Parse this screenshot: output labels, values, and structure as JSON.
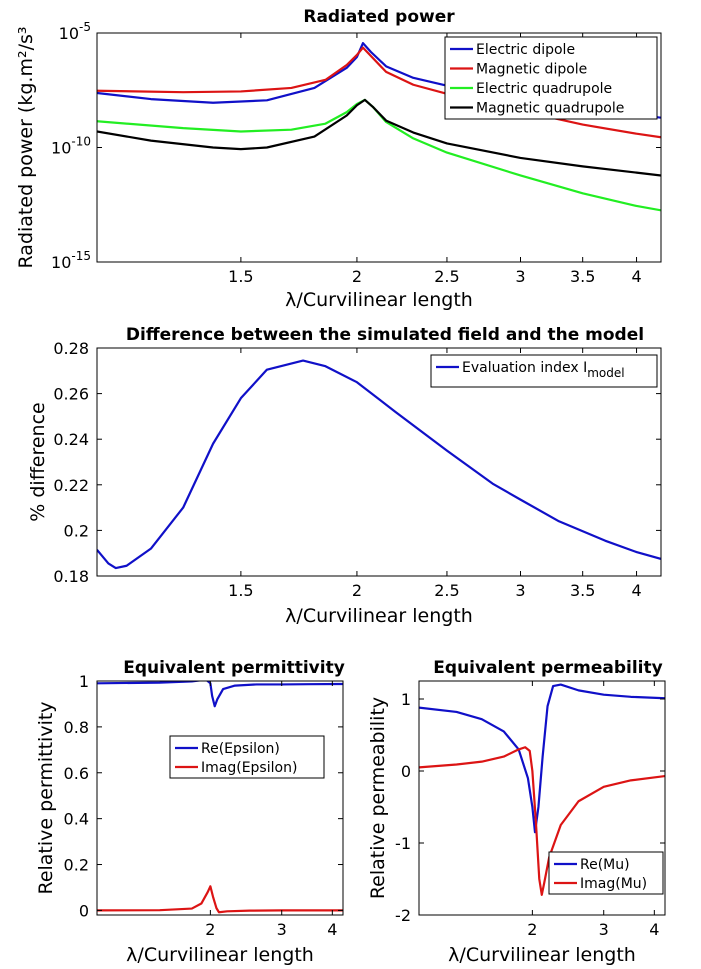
{
  "chart_data": [
    {
      "type": "line",
      "title": "Radiated power",
      "xlabel": "λ/Curvilinear length",
      "ylabel": "Radiated power (kg.m²/s³",
      "xscale": "log",
      "yscale": "log",
      "xlim": [
        1.05,
        4.25
      ],
      "ylim": [
        1e-15,
        1e-05
      ],
      "xticks": [
        1.5,
        2,
        2.5,
        3,
        3.5,
        4
      ],
      "xtick_labels": [
        "1.5",
        "2",
        "2.5",
        "3",
        "3.5",
        "4"
      ],
      "yticks": [
        1e-15,
        1e-10,
        1e-05
      ],
      "ytick_labels": [
        {
          "base": "10",
          "exp": "-15"
        },
        {
          "base": "10",
          "exp": "-10"
        },
        {
          "base": "10",
          "exp": "-5"
        }
      ],
      "legend_position": "top-right",
      "series": [
        {
          "name": "Electric dipole",
          "color": "#1010c8",
          "points": [
            [
              1.05,
              2.4e-08
            ],
            [
              1.2,
              1.3e-08
            ],
            [
              1.4,
              9e-09
            ],
            [
              1.6,
              1.15e-08
            ],
            [
              1.8,
              4e-08
            ],
            [
              1.95,
              3e-07
            ],
            [
              2.0,
              9e-07
            ],
            [
              2.03,
              3.6e-06
            ],
            [
              2.07,
              1.5e-06
            ],
            [
              2.15,
              3.5e-07
            ],
            [
              2.3,
              1.1e-07
            ],
            [
              2.5,
              5e-08
            ],
            [
              3.0,
              1.6e-08
            ],
            [
              3.5,
              6e-09
            ],
            [
              4.0,
              2.7e-09
            ],
            [
              4.25,
              2e-09
            ]
          ]
        },
        {
          "name": "Magnetic dipole",
          "color": "#dc1414",
          "points": [
            [
              1.05,
              3e-08
            ],
            [
              1.3,
              2.6e-08
            ],
            [
              1.5,
              2.8e-08
            ],
            [
              1.7,
              4e-08
            ],
            [
              1.85,
              9e-08
            ],
            [
              1.95,
              4e-07
            ],
            [
              2.0,
              1.1e-06
            ],
            [
              2.03,
              2.3e-06
            ],
            [
              2.07,
              1e-06
            ],
            [
              2.15,
              2e-07
            ],
            [
              2.3,
              5.5e-08
            ],
            [
              2.5,
              2.2e-08
            ],
            [
              3.0,
              4e-09
            ],
            [
              3.5,
              1e-09
            ],
            [
              4.0,
              4e-10
            ],
            [
              4.25,
              2.8e-10
            ]
          ]
        },
        {
          "name": "Electric quadrupole",
          "color": "#22ee22",
          "points": [
            [
              1.05,
              1.4e-09
            ],
            [
              1.3,
              7e-10
            ],
            [
              1.5,
              5e-10
            ],
            [
              1.7,
              6e-10
            ],
            [
              1.85,
              1.1e-09
            ],
            [
              1.95,
              3.5e-09
            ],
            [
              2.0,
              8e-09
            ],
            [
              2.04,
              1.2e-08
            ],
            [
              2.08,
              6e-09
            ],
            [
              2.15,
              1.3e-09
            ],
            [
              2.3,
              2.5e-10
            ],
            [
              2.5,
              6e-11
            ],
            [
              3.0,
              6e-12
            ],
            [
              3.5,
              1e-12
            ],
            [
              4.0,
              2.8e-13
            ],
            [
              4.25,
              1.8e-13
            ]
          ]
        },
        {
          "name": "Magnetic quadrupole",
          "color": "#000000",
          "points": [
            [
              1.05,
              5e-10
            ],
            [
              1.2,
              2e-10
            ],
            [
              1.4,
              1e-10
            ],
            [
              1.5,
              8.5e-11
            ],
            [
              1.6,
              1e-10
            ],
            [
              1.8,
              3e-10
            ],
            [
              1.95,
              2.5e-09
            ],
            [
              2.0,
              7e-09
            ],
            [
              2.04,
              1.2e-08
            ],
            [
              2.08,
              6e-09
            ],
            [
              2.15,
              1.5e-09
            ],
            [
              2.3,
              4.5e-10
            ],
            [
              2.5,
              1.5e-10
            ],
            [
              3.0,
              3.5e-11
            ],
            [
              3.5,
              1.5e-11
            ],
            [
              4.0,
              8e-12
            ],
            [
              4.25,
              6e-12
            ]
          ]
        }
      ]
    },
    {
      "type": "line",
      "title": "Difference between the simulated field and the model",
      "xlabel": "λ/Curvilinear length",
      "ylabel": "% difference",
      "xscale": "log",
      "yscale": "linear",
      "xlim": [
        1.05,
        4.25
      ],
      "ylim": [
        0.18,
        0.28
      ],
      "xticks": [
        1.5,
        2,
        2.5,
        3,
        3.5,
        4
      ],
      "xtick_labels": [
        "1.5",
        "2",
        "2.5",
        "3",
        "3.5",
        "4"
      ],
      "yticks": [
        0.18,
        0.2,
        0.22,
        0.24,
        0.26,
        0.28
      ],
      "ytick_labels": [
        "0.18",
        "0.2",
        "0.22",
        "0.24",
        "0.26",
        "0.28"
      ],
      "legend_position": "top-right",
      "series": [
        {
          "name": "Evaluation index I",
          "name_sub": "model",
          "color": "#1010c8",
          "points": [
            [
              1.05,
              0.1915
            ],
            [
              1.08,
              0.1855
            ],
            [
              1.1,
              0.1835
            ],
            [
              1.13,
              0.1845
            ],
            [
              1.2,
              0.192
            ],
            [
              1.3,
              0.21
            ],
            [
              1.4,
              0.238
            ],
            [
              1.5,
              0.258
            ],
            [
              1.6,
              0.2705
            ],
            [
              1.75,
              0.2745
            ],
            [
              1.85,
              0.272
            ],
            [
              2.0,
              0.265
            ],
            [
              2.2,
              0.252
            ],
            [
              2.5,
              0.235
            ],
            [
              2.8,
              0.2205
            ],
            [
              3.0,
              0.2135
            ],
            [
              3.3,
              0.204
            ],
            [
              3.7,
              0.1955
            ],
            [
              4.0,
              0.1905
            ],
            [
              4.25,
              0.1875
            ]
          ]
        }
      ]
    },
    {
      "type": "line",
      "title": "Equivalent permittivity",
      "xlabel": "λ/Curvilinear length",
      "ylabel": "Relative permittivity",
      "xscale": "log",
      "yscale": "linear",
      "xlim": [
        1.05,
        4.25
      ],
      "ylim": [
        -0.02,
        1.0
      ],
      "xticks": [
        2,
        3,
        4
      ],
      "xtick_labels": [
        "2",
        "3",
        "4"
      ],
      "yticks": [
        0,
        0.2,
        0.4,
        0.6,
        0.8,
        1
      ],
      "ytick_labels": [
        "0",
        "0.2",
        "0.4",
        "0.6",
        "0.8",
        "1"
      ],
      "legend_position": "center",
      "series": [
        {
          "name": "Re(Epsilon)",
          "color": "#1010c8",
          "points": [
            [
              1.05,
              0.99
            ],
            [
              1.5,
              0.993
            ],
            [
              1.8,
              0.998
            ],
            [
              1.95,
              1.006
            ],
            [
              2.0,
              0.99
            ],
            [
              2.02,
              0.935
            ],
            [
              2.05,
              0.89
            ],
            [
              2.08,
              0.92
            ],
            [
              2.15,
              0.965
            ],
            [
              2.3,
              0.98
            ],
            [
              2.6,
              0.985
            ],
            [
              3.0,
              0.985
            ],
            [
              3.5,
              0.986
            ],
            [
              4.25,
              0.987
            ]
          ]
        },
        {
          "name": "Imag(Epsilon)",
          "color": "#dc1414",
          "points": [
            [
              1.05,
              0.0
            ],
            [
              1.5,
              0.001
            ],
            [
              1.8,
              0.008
            ],
            [
              1.9,
              0.03
            ],
            [
              1.97,
              0.08
            ],
            [
              2.0,
              0.105
            ],
            [
              2.03,
              0.06
            ],
            [
              2.07,
              0.01
            ],
            [
              2.1,
              -0.008
            ],
            [
              2.2,
              -0.004
            ],
            [
              2.5,
              -0.001
            ],
            [
              3.0,
              0.0
            ],
            [
              4.25,
              0.0
            ]
          ]
        }
      ]
    },
    {
      "type": "line",
      "title": "Equivalent permeability",
      "xlabel": "λ/Curvilinear length",
      "ylabel": "Relative permeability",
      "xscale": "log",
      "yscale": "linear",
      "xlim": [
        1.05,
        4.25
      ],
      "ylim": [
        -2.0,
        1.25
      ],
      "xticks": [
        2,
        3,
        4
      ],
      "xtick_labels": [
        "2",
        "3",
        "4"
      ],
      "yticks": [
        -2,
        -1,
        0,
        1
      ],
      "ytick_labels": [
        "-2",
        "-1",
        "0",
        "1"
      ],
      "legend_position": "bottom-right",
      "series": [
        {
          "name": "Re(Mu)",
          "color": "#1010c8",
          "points": [
            [
              1.05,
              0.88
            ],
            [
              1.3,
              0.82
            ],
            [
              1.5,
              0.72
            ],
            [
              1.7,
              0.55
            ],
            [
              1.85,
              0.3
            ],
            [
              1.95,
              -0.1
            ],
            [
              2.0,
              -0.5
            ],
            [
              2.03,
              -0.85
            ],
            [
              2.07,
              -0.5
            ],
            [
              2.12,
              0.2
            ],
            [
              2.18,
              0.9
            ],
            [
              2.25,
              1.18
            ],
            [
              2.35,
              1.2
            ],
            [
              2.6,
              1.12
            ],
            [
              3.0,
              1.06
            ],
            [
              3.5,
              1.03
            ],
            [
              4.25,
              1.01
            ]
          ]
        },
        {
          "name": "Imag(Mu)",
          "color": "#dc1414",
          "points": [
            [
              1.05,
              0.05
            ],
            [
              1.3,
              0.09
            ],
            [
              1.5,
              0.13
            ],
            [
              1.7,
              0.2
            ],
            [
              1.85,
              0.3
            ],
            [
              1.92,
              0.33
            ],
            [
              1.97,
              0.28
            ],
            [
              2.0,
              0.0
            ],
            [
              2.04,
              -0.7
            ],
            [
              2.08,
              -1.5
            ],
            [
              2.11,
              -1.72
            ],
            [
              2.14,
              -1.55
            ],
            [
              2.2,
              -1.2
            ],
            [
              2.35,
              -0.75
            ],
            [
              2.6,
              -0.42
            ],
            [
              3.0,
              -0.22
            ],
            [
              3.5,
              -0.13
            ],
            [
              4.25,
              -0.07
            ]
          ]
        }
      ]
    }
  ]
}
